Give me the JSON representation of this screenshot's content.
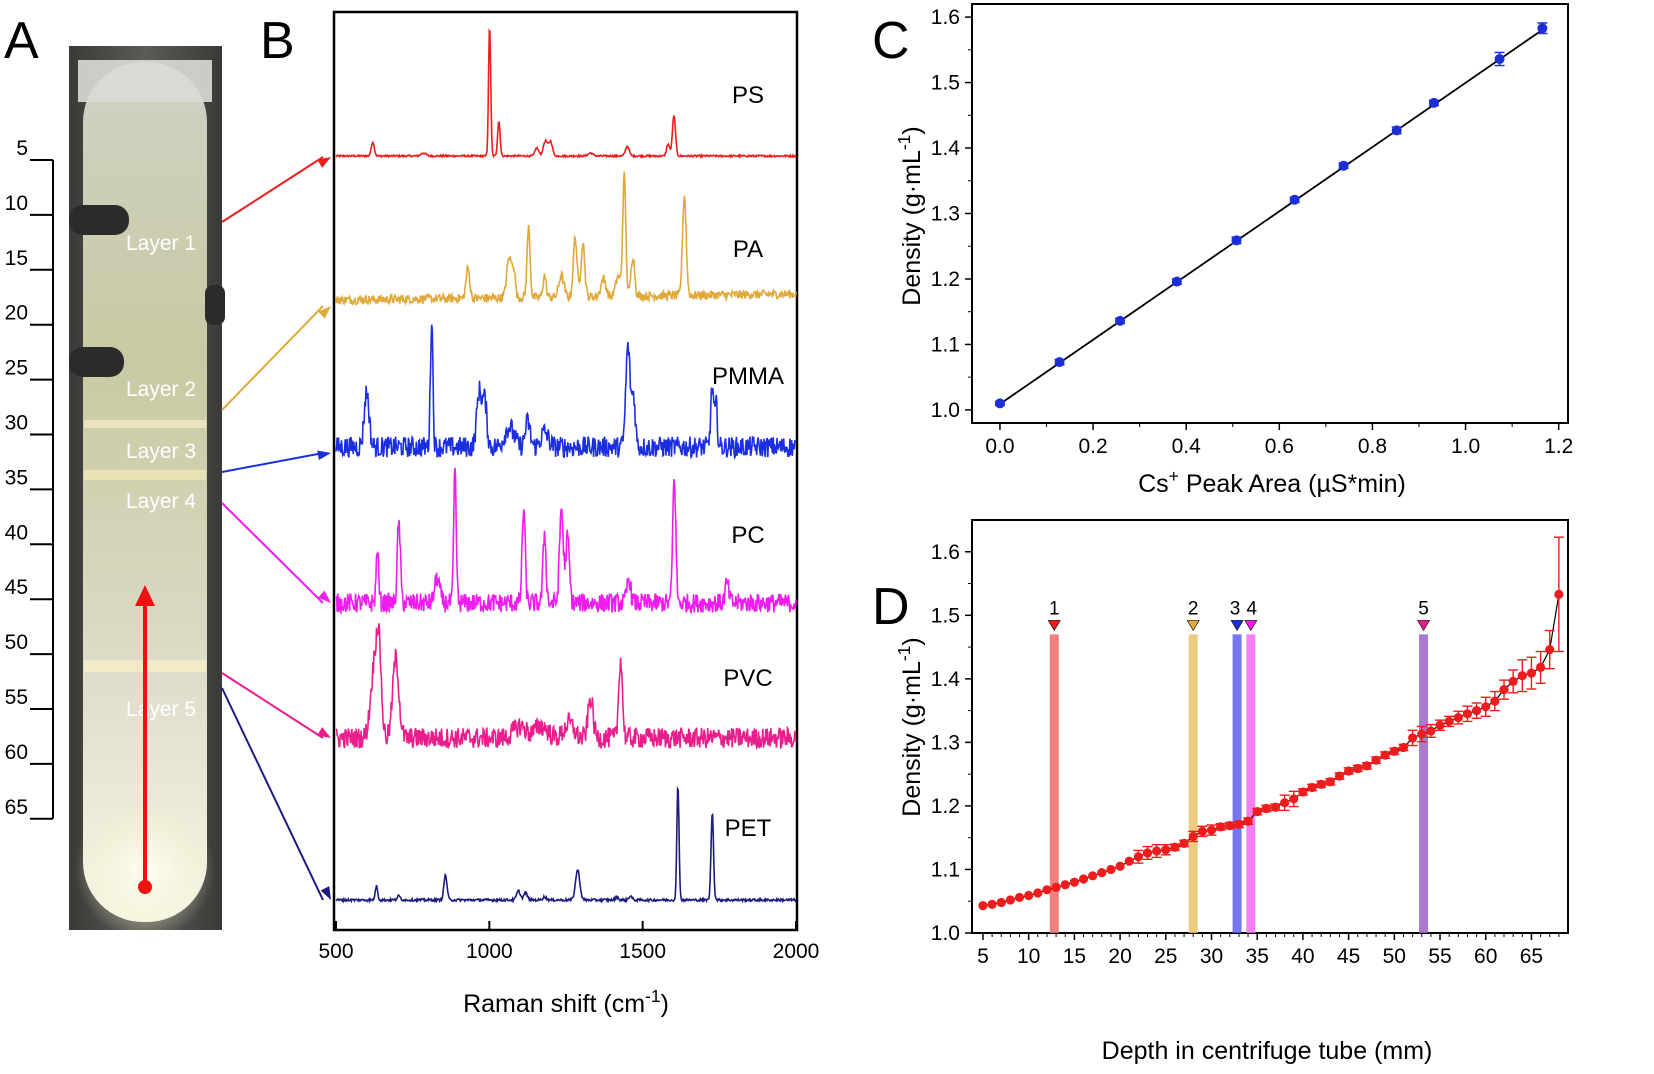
{
  "panels": {
    "A": "A",
    "B": "B",
    "C": "C",
    "D": "D"
  },
  "tube": {
    "ruler_ticks": [
      "5",
      "10",
      "15",
      "20",
      "25",
      "30",
      "35",
      "40",
      "45",
      "50",
      "55",
      "60",
      "65"
    ],
    "layers": [
      {
        "label": "Layer 1",
        "depth": 11,
        "color": "#ee1c1c"
      },
      {
        "label": "Layer 2",
        "depth": 28,
        "color": "#e0a93a"
      },
      {
        "label": "Layer 3",
        "depth": 33.5,
        "color": "#1c2fe0"
      },
      {
        "label": "Layer 4",
        "depth": 34.5,
        "color": "#ee1cee"
      },
      {
        "label": "Layer 5",
        "depth": 54,
        "color": "#e91e8c"
      }
    ],
    "arrow_color": "#ee1111"
  },
  "chart_data": [
    {
      "panel": "B",
      "type": "line",
      "xlabel": "Raman shift (cm⁻¹)",
      "xlim": [
        500,
        2000
      ],
      "xticks": [
        500,
        1000,
        1500,
        2000
      ],
      "y_ticks_shown": false,
      "series": [
        {
          "name": "PS",
          "color": "#ee1c1c",
          "noise": 0.3,
          "peaks": [
            [
              620,
              5,
              14
            ],
            [
              785,
              8,
              3
            ],
            [
              1001,
              3.5,
              130
            ],
            [
              1031,
              4,
              35
            ],
            [
              1155,
              6,
              8
            ],
            [
              1183,
              7,
              15
            ],
            [
              1200,
              6,
              14
            ],
            [
              1330,
              8,
              3
            ],
            [
              1450,
              6,
              10
            ],
            [
              1583,
              5,
              12
            ],
            [
              1602,
              5,
              40
            ]
          ]
        },
        {
          "name": "PA",
          "color": "#e0a93a",
          "noise": 1.5,
          "peaks": [
            [
              930,
              6,
              30
            ],
            [
              1065,
              8,
              40
            ],
            [
              1080,
              5,
              25
            ],
            [
              1128,
              5,
              70
            ],
            [
              1180,
              5,
              22
            ],
            [
              1235,
              8,
              22
            ],
            [
              1280,
              6,
              60
            ],
            [
              1305,
              6,
              55
            ],
            [
              1372,
              8,
              18
            ],
            [
              1420,
              8,
              20
            ],
            [
              1440,
              5,
              120
            ],
            [
              1468,
              6,
              40
            ],
            [
              1636,
              6,
              100
            ]
          ]
        },
        {
          "name": "PMMA",
          "color": "#1c2fe0",
          "noise": 3.5,
          "peaks": [
            [
              600,
              8,
              55
            ],
            [
              812,
              4,
              130
            ],
            [
              967,
              8,
              55
            ],
            [
              985,
              7,
              45
            ],
            [
              1065,
              15,
              20
            ],
            [
              1125,
              8,
              25
            ],
            [
              1180,
              12,
              15
            ],
            [
              1452,
              7,
              100
            ],
            [
              1470,
              6,
              50
            ],
            [
              1727,
              5,
              60
            ],
            [
              1740,
              4,
              40
            ]
          ]
        },
        {
          "name": "PC",
          "color": "#ee1cee",
          "noise": 3.2,
          "peaks": [
            [
              635,
              4,
              55
            ],
            [
              705,
              5,
              80
            ],
            [
              830,
              8,
              25
            ],
            [
              888,
              4,
              135
            ],
            [
              1112,
              5,
              95
            ],
            [
              1180,
              5,
              70
            ],
            [
              1235,
              6,
              95
            ],
            [
              1255,
              6,
              65
            ],
            [
              1455,
              6,
              25
            ],
            [
              1603,
              5,
              125
            ],
            [
              1775,
              6,
              20
            ]
          ]
        },
        {
          "name": "PVC",
          "color": "#e91e8c",
          "noise": 3.5,
          "peaks": [
            [
              625,
              12,
              70
            ],
            [
              640,
              8,
              75
            ],
            [
              695,
              10,
              80
            ],
            [
              1100,
              20,
              12
            ],
            [
              1170,
              20,
              12
            ],
            [
              1260,
              15,
              15
            ],
            [
              1330,
              8,
              40
            ],
            [
              1428,
              6,
              80
            ]
          ]
        },
        {
          "name": "PET",
          "color": "#1c1c80",
          "noise": 0.4,
          "peaks": [
            [
              632,
              4,
              14
            ],
            [
              705,
              5,
              4
            ],
            [
              857,
              5,
              25
            ],
            [
              1095,
              6,
              9
            ],
            [
              1118,
              6,
              7
            ],
            [
              1180,
              6,
              3
            ],
            [
              1288,
              7,
              30
            ],
            [
              1416,
              5,
              3
            ],
            [
              1460,
              5,
              4
            ],
            [
              1615,
              3.5,
              115
            ],
            [
              1727,
              4,
              88
            ]
          ]
        }
      ]
    },
    {
      "panel": "C",
      "type": "scatter",
      "xlabel": "Cs+ Peak Area (µS*min)",
      "ylabel": "Density (g·mL-1)",
      "xlim": [
        -0.06,
        1.22
      ],
      "ylim": [
        0.98,
        1.62
      ],
      "xticks": [
        0.0,
        0.2,
        0.4,
        0.6,
        0.8,
        1.0,
        1.2
      ],
      "yticks": [
        1.0,
        1.1,
        1.2,
        1.3,
        1.4,
        1.5,
        1.6
      ],
      "fit_line": [
        [
          0.0,
          1.009
        ],
        [
          1.17,
          1.583
        ]
      ],
      "series": [
        {
          "name": "",
          "color": "#1c2fd6",
          "points": [
            {
              "x": 0.0,
              "y": 1.01,
              "err": 0.003
            },
            {
              "x": 0.128,
              "y": 1.073,
              "err": 0.004
            },
            {
              "x": 0.258,
              "y": 1.136,
              "err": 0.004
            },
            {
              "x": 0.38,
              "y": 1.196,
              "err": 0.004
            },
            {
              "x": 0.508,
              "y": 1.259,
              "err": 0.005
            },
            {
              "x": 0.633,
              "y": 1.321,
              "err": 0.004
            },
            {
              "x": 0.738,
              "y": 1.373,
              "err": 0.004
            },
            {
              "x": 0.852,
              "y": 1.427,
              "err": 0.005
            },
            {
              "x": 0.932,
              "y": 1.469,
              "err": 0.004
            },
            {
              "x": 1.073,
              "y": 1.536,
              "err": 0.01
            },
            {
              "x": 1.165,
              "y": 1.583,
              "err": 0.008
            }
          ]
        }
      ]
    },
    {
      "panel": "D",
      "type": "scatter",
      "xlabel": "Depth in centrifuge tube (mm)",
      "ylabel": "Density (g·mL-1)",
      "xlim": [
        3.8,
        69
      ],
      "ylim": [
        1.0,
        1.65
      ],
      "xticks": [
        5,
        10,
        15,
        20,
        25,
        30,
        35,
        40,
        45,
        50,
        55,
        60,
        65
      ],
      "yticks": [
        1.0,
        1.1,
        1.2,
        1.3,
        1.4,
        1.5,
        1.6
      ],
      "series": [
        {
          "name": "",
          "color": "#ee1c1c",
          "points": [
            {
              "x": 5.0,
              "y": 1.043,
              "err": 0.003
            },
            {
              "x": 6.0,
              "y": 1.045,
              "err": 0.003
            },
            {
              "x": 7.0,
              "y": 1.048,
              "err": 0.003
            },
            {
              "x": 8.0,
              "y": 1.052,
              "err": 0.003
            },
            {
              "x": 9.0,
              "y": 1.056,
              "err": 0.003
            },
            {
              "x": 10.0,
              "y": 1.059,
              "err": 0.003
            },
            {
              "x": 11.0,
              "y": 1.063,
              "err": 0.003
            },
            {
              "x": 12.0,
              "y": 1.068,
              "err": 0.003
            },
            {
              "x": 13.0,
              "y": 1.072,
              "err": 0.003
            },
            {
              "x": 14.0,
              "y": 1.076,
              "err": 0.003
            },
            {
              "x": 15.0,
              "y": 1.08,
              "err": 0.003
            },
            {
              "x": 16.0,
              "y": 1.085,
              "err": 0.003
            },
            {
              "x": 17.0,
              "y": 1.09,
              "err": 0.003
            },
            {
              "x": 18.0,
              "y": 1.095,
              "err": 0.003
            },
            {
              "x": 19.0,
              "y": 1.1,
              "err": 0.003
            },
            {
              "x": 20.0,
              "y": 1.105,
              "err": 0.003
            },
            {
              "x": 21.0,
              "y": 1.113,
              "err": 0.003
            },
            {
              "x": 22.0,
              "y": 1.12,
              "err": 0.01
            },
            {
              "x": 23.0,
              "y": 1.126,
              "err": 0.01
            },
            {
              "x": 24.0,
              "y": 1.129,
              "err": 0.01
            },
            {
              "x": 25.0,
              "y": 1.131,
              "err": 0.008
            },
            {
              "x": 26.0,
              "y": 1.135,
              "err": 0.005
            },
            {
              "x": 27.0,
              "y": 1.141,
              "err": 0.005
            },
            {
              "x": 28.0,
              "y": 1.152,
              "err": 0.008
            },
            {
              "x": 29.0,
              "y": 1.16,
              "err": 0.008
            },
            {
              "x": 30.0,
              "y": 1.162,
              "err": 0.008
            },
            {
              "x": 31.0,
              "y": 1.167,
              "err": 0.005
            },
            {
              "x": 32.0,
              "y": 1.169,
              "err": 0.005
            },
            {
              "x": 33.0,
              "y": 1.171,
              "err": 0.005
            },
            {
              "x": 34.0,
              "y": 1.176,
              "err": 0.005
            },
            {
              "x": 35.0,
              "y": 1.191,
              "err": 0.005
            },
            {
              "x": 36.0,
              "y": 1.196,
              "err": 0.005
            },
            {
              "x": 37.0,
              "y": 1.198,
              "err": 0.005
            },
            {
              "x": 38.0,
              "y": 1.205,
              "err": 0.012
            },
            {
              "x": 39.0,
              "y": 1.211,
              "err": 0.012
            },
            {
              "x": 40.0,
              "y": 1.222,
              "err": 0.005
            },
            {
              "x": 41.0,
              "y": 1.229,
              "err": 0.005
            },
            {
              "x": 42.0,
              "y": 1.234,
              "err": 0.005
            },
            {
              "x": 43.0,
              "y": 1.238,
              "err": 0.005
            },
            {
              "x": 44.0,
              "y": 1.247,
              "err": 0.005
            },
            {
              "x": 45.0,
              "y": 1.255,
              "err": 0.005
            },
            {
              "x": 46.0,
              "y": 1.259,
              "err": 0.005
            },
            {
              "x": 47.0,
              "y": 1.263,
              "err": 0.005
            },
            {
              "x": 48.0,
              "y": 1.272,
              "err": 0.005
            },
            {
              "x": 49.0,
              "y": 1.28,
              "err": 0.005
            },
            {
              "x": 50.0,
              "y": 1.286,
              "err": 0.005
            },
            {
              "x": 51.0,
              "y": 1.292,
              "err": 0.005
            },
            {
              "x": 52.0,
              "y": 1.307,
              "err": 0.012
            },
            {
              "x": 53.0,
              "y": 1.313,
              "err": 0.012
            },
            {
              "x": 54.0,
              "y": 1.318,
              "err": 0.01
            },
            {
              "x": 55.0,
              "y": 1.327,
              "err": 0.008
            },
            {
              "x": 56.0,
              "y": 1.333,
              "err": 0.008
            },
            {
              "x": 57.0,
              "y": 1.339,
              "err": 0.01
            },
            {
              "x": 58.0,
              "y": 1.345,
              "err": 0.012
            },
            {
              "x": 59.0,
              "y": 1.35,
              "err": 0.012
            },
            {
              "x": 60.0,
              "y": 1.356,
              "err": 0.015
            },
            {
              "x": 61.0,
              "y": 1.365,
              "err": 0.015
            },
            {
              "x": 62.0,
              "y": 1.383,
              "err": 0.015
            },
            {
              "x": 63.0,
              "y": 1.396,
              "err": 0.018
            },
            {
              "x": 64.0,
              "y": 1.405,
              "err": 0.025
            },
            {
              "x": 65.0,
              "y": 1.409,
              "err": 0.025
            },
            {
              "x": 66.0,
              "y": 1.418,
              "err": 0.025
            },
            {
              "x": 67.0,
              "y": 1.446,
              "err": 0.03
            },
            {
              "x": 68.0,
              "y": 1.533,
              "err": 0.09
            }
          ]
        }
      ],
      "markers": [
        {
          "label": "1",
          "x": 12.8,
          "color": "#ee1c1c",
          "band": "#ee6a6a"
        },
        {
          "label": "2",
          "x": 28.0,
          "color": "#e0a93a",
          "band": "#ebc26a"
        },
        {
          "label": "3",
          "x": 32.8,
          "color": "#1c2fe0",
          "band": "#5e5ef0"
        },
        {
          "label": "4",
          "x": 34.3,
          "color": "#ee1cee",
          "band": "#f06af0"
        },
        {
          "label": "5",
          "x": 53.2,
          "color": "#e91e8c",
          "band": "#9a63c9"
        }
      ]
    }
  ]
}
